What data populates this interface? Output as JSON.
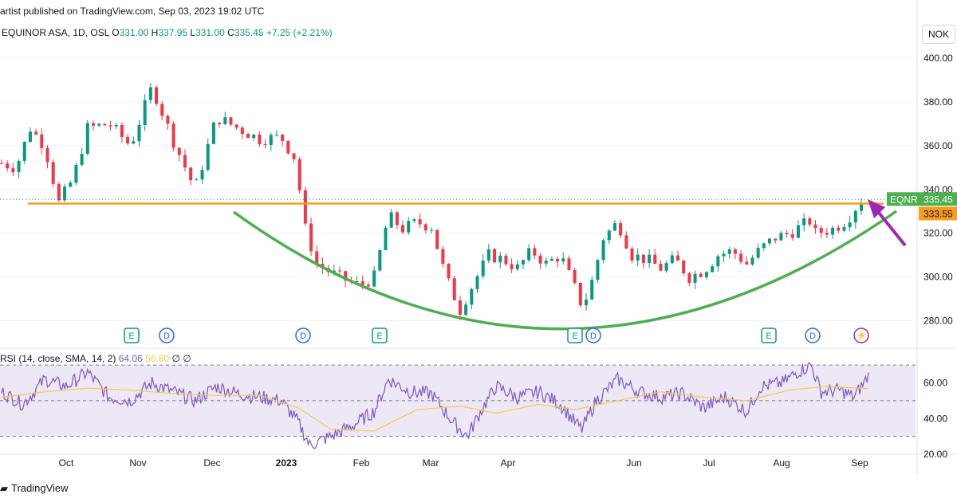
{
  "header": {
    "published_by": "artist published on TradingView.com, Sep 03, 2023 19:02 UTC"
  },
  "legend": {
    "symbol": "EQUINOR ASA, 1D, OSL",
    "open_label": "O",
    "open": "331.00",
    "high_label": "H",
    "high": "337.95",
    "low_label": "L",
    "low": "331.00",
    "close_label": "C",
    "close": "335.45",
    "change": "+7.25 (+2.21%)"
  },
  "currency": "NOK",
  "rsi_legend": {
    "label": "RSI (14, close, SMA, 14, 2)",
    "rsi_value": "64.06",
    "sma_value": "56.80",
    "extra": "∅ ∅"
  },
  "footer": {
    "brand": "TradingView"
  },
  "colors": {
    "up": "#089981",
    "down": "#f23645",
    "resistance": "#f89c1c",
    "cup": "#4caf50",
    "arrow": "#9c27b0",
    "rsi": "#7e57c2",
    "rsi_ma": "#f7c948",
    "rsi_band": "#ede7f6",
    "tag_green": "#4caf50",
    "tag_orange": "#f89c1c"
  },
  "chart_data": {
    "type": "candlestick",
    "y_ticks": [
      "400.00",
      "380.00",
      "360.00",
      "340.00",
      "320.00",
      "300.00",
      "280.00"
    ],
    "ylim": [
      270,
      404
    ],
    "x_ticks": [
      "Oct",
      "Nov",
      "Dec",
      "2023",
      "Feb",
      "Mar",
      "Apr",
      "Jun",
      "Jul",
      "Aug",
      "Sep"
    ],
    "price_tag": {
      "label": "EQNR",
      "value": "335.45"
    },
    "resistance": {
      "value": "333.55",
      "price": 333.55
    },
    "anchors": [
      [
        0,
        352
      ],
      [
        10,
        350
      ],
      [
        20,
        368
      ],
      [
        30,
        360
      ],
      [
        40,
        334
      ],
      [
        50,
        345
      ],
      [
        60,
        368
      ],
      [
        75,
        370
      ],
      [
        90,
        360
      ],
      [
        105,
        387
      ],
      [
        120,
        362
      ],
      [
        135,
        340
      ],
      [
        150,
        373
      ],
      [
        165,
        368
      ],
      [
        180,
        363
      ],
      [
        195,
        364
      ],
      [
        207,
        352
      ],
      [
        209,
        328
      ],
      [
        220,
        306
      ],
      [
        235,
        300
      ],
      [
        250,
        296
      ],
      [
        260,
        300
      ],
      [
        270,
        328
      ],
      [
        280,
        322
      ],
      [
        290,
        325
      ],
      [
        300,
        323
      ],
      [
        310,
        300
      ],
      [
        320,
        285
      ],
      [
        330,
        298
      ],
      [
        340,
        310
      ],
      [
        350,
        308
      ],
      [
        360,
        304
      ],
      [
        370,
        312
      ],
      [
        380,
        306
      ],
      [
        390,
        310
      ],
      [
        400,
        295
      ],
      [
        405,
        287
      ],
      [
        410,
        293
      ],
      [
        420,
        318
      ],
      [
        430,
        325
      ],
      [
        440,
        310
      ],
      [
        450,
        308
      ],
      [
        460,
        304
      ],
      [
        470,
        308
      ],
      [
        480,
        300
      ],
      [
        490,
        303
      ],
      [
        500,
        310
      ],
      [
        510,
        312
      ],
      [
        520,
        306
      ],
      [
        530,
        313
      ],
      [
        540,
        318
      ],
      [
        550,
        320
      ],
      [
        565,
        326
      ],
      [
        568,
        320
      ],
      [
        580,
        322
      ],
      [
        590,
        326
      ],
      [
        600,
        335.45
      ]
    ],
    "x_range": [
      0,
      640
    ],
    "rsi": {
      "ylim": [
        20,
        75
      ],
      "y_ticks": [
        "60.00",
        "40.00",
        "20.00"
      ],
      "levels": [
        70,
        50,
        30
      ],
      "anchors": [
        [
          0,
          55
        ],
        [
          15,
          48
        ],
        [
          30,
          62
        ],
        [
          45,
          58
        ],
        [
          60,
          66
        ],
        [
          75,
          52
        ],
        [
          90,
          50
        ],
        [
          105,
          60
        ],
        [
          120,
          55
        ],
        [
          135,
          50
        ],
        [
          150,
          58
        ],
        [
          165,
          54
        ],
        [
          180,
          52
        ],
        [
          195,
          50
        ],
        [
          207,
          38
        ],
        [
          215,
          25
        ],
        [
          230,
          30
        ],
        [
          245,
          36
        ],
        [
          260,
          44
        ],
        [
          270,
          62
        ],
        [
          285,
          55
        ],
        [
          300,
          54
        ],
        [
          315,
          38
        ],
        [
          325,
          30
        ],
        [
          335,
          45
        ],
        [
          345,
          58
        ],
        [
          360,
          52
        ],
        [
          375,
          55
        ],
        [
          390,
          48
        ],
        [
          400,
          38
        ],
        [
          405,
          34
        ],
        [
          415,
          50
        ],
        [
          430,
          62
        ],
        [
          445,
          55
        ],
        [
          460,
          52
        ],
        [
          475,
          54
        ],
        [
          490,
          46
        ],
        [
          505,
          52
        ],
        [
          520,
          44
        ],
        [
          530,
          58
        ],
        [
          545,
          60
        ],
        [
          555,
          66
        ],
        [
          565,
          70
        ],
        [
          572,
          55
        ],
        [
          585,
          56
        ],
        [
          595,
          52
        ],
        [
          605,
          64.06
        ]
      ],
      "sma_anchors": [
        [
          0,
          52
        ],
        [
          30,
          55
        ],
        [
          60,
          57
        ],
        [
          90,
          56
        ],
        [
          120,
          54
        ],
        [
          150,
          53
        ],
        [
          180,
          53
        ],
        [
          207,
          46
        ],
        [
          230,
          34
        ],
        [
          260,
          33
        ],
        [
          290,
          45
        ],
        [
          320,
          47
        ],
        [
          345,
          43
        ],
        [
          375,
          48
        ],
        [
          400,
          45
        ],
        [
          430,
          50
        ],
        [
          460,
          55
        ],
        [
          490,
          52
        ],
        [
          520,
          50
        ],
        [
          550,
          56
        ],
        [
          575,
          58
        ],
        [
          605,
          56.8
        ]
      ]
    },
    "event_markers": [
      {
        "label": "E",
        "kind": "earnings",
        "x": 165
      },
      {
        "label": "D",
        "kind": "dividend",
        "x": 209
      },
      {
        "label": "D",
        "kind": "dividend",
        "x": 380
      },
      {
        "label": "E",
        "kind": "earnings",
        "x": 476
      },
      {
        "label": "E",
        "kind": "earnings",
        "x": 721
      },
      {
        "label": "D",
        "kind": "dividend",
        "x": 744
      },
      {
        "label": "E",
        "kind": "earnings",
        "x": 964
      },
      {
        "label": "D",
        "kind": "dividend",
        "x": 1019
      },
      {
        "label": "⚡",
        "kind": "split",
        "x": 1080
      }
    ]
  }
}
